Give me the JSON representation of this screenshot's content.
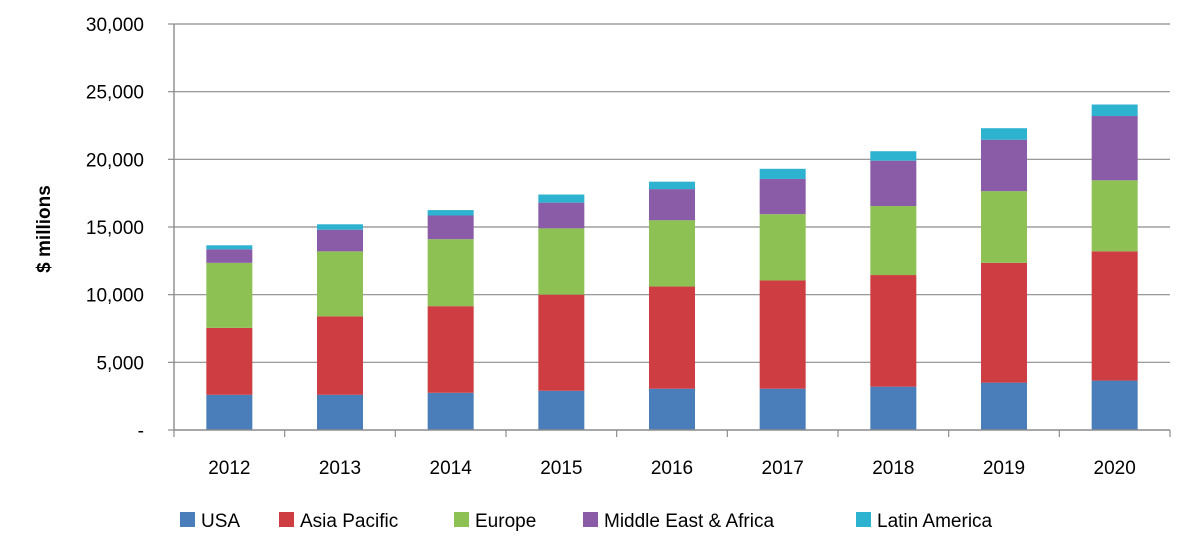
{
  "chart_data": {
    "type": "bar",
    "stacked": true,
    "categories": [
      "2012",
      "2013",
      "2014",
      "2015",
      "2016",
      "2017",
      "2018",
      "2019",
      "2020"
    ],
    "series": [
      {
        "name": "USA",
        "color": "#4a7ebb",
        "values": [
          2600,
          2600,
          2750,
          2900,
          3050,
          3050,
          3200,
          3500,
          3650
        ]
      },
      {
        "name": "Asia Pacific",
        "color": "#ce3d41",
        "values": [
          4950,
          5800,
          6400,
          7100,
          7550,
          8000,
          8250,
          8850,
          9550
        ]
      },
      {
        "name": "Europe",
        "color": "#8ec153",
        "values": [
          4800,
          4800,
          4950,
          4900,
          4900,
          4900,
          5100,
          5300,
          5250
        ]
      },
      {
        "name": "Middle East  & Africa",
        "color": "#8a5ba7",
        "values": [
          1000,
          1600,
          1750,
          1900,
          2300,
          2600,
          3350,
          3800,
          4750
        ]
      },
      {
        "name": "Latin America",
        "color": "#2db3cf",
        "values": [
          300,
          400,
          400,
          600,
          550,
          750,
          700,
          850,
          850
        ]
      }
    ],
    "ylabel": "$ millions",
    "xlabel": "",
    "title": "",
    "ylim": [
      0,
      30000
    ],
    "yticks": [
      {
        "value": 0,
        "label": "-"
      },
      {
        "value": 5000,
        "label": "5,000"
      },
      {
        "value": 10000,
        "label": "10,000"
      },
      {
        "value": 15000,
        "label": "15,000"
      },
      {
        "value": 20000,
        "label": "20,000"
      },
      {
        "value": 25000,
        "label": "25,000"
      },
      {
        "value": 30000,
        "label": "30,000"
      }
    ],
    "grid": true,
    "legend_position": "bottom"
  }
}
